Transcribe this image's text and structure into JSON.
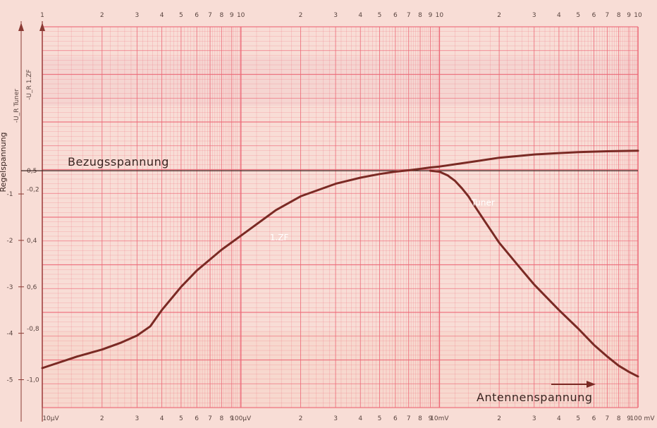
{
  "chart_data": {
    "type": "line",
    "x_scale": "log",
    "x_range": [
      1,
      1000
    ],
    "x_top_tick_labels": [
      "1",
      "2",
      "3",
      "4",
      "5",
      "6",
      "7",
      "8",
      "9",
      "10",
      "2",
      "3",
      "4",
      "5",
      "6",
      "7",
      "8",
      "9",
      "10",
      "2",
      "3",
      "4",
      "5",
      "6",
      "7",
      "8",
      "9",
      "10"
    ],
    "x_bottom_tick_labels": [
      "10µV",
      "2",
      "3",
      "4",
      "5",
      "6",
      "7",
      "8",
      "9",
      "100µV",
      "2",
      "3",
      "4",
      "5",
      "6",
      "7",
      "8",
      "9",
      "10mV",
      "2",
      "3",
      "4",
      "5",
      "6",
      "7",
      "8",
      "9",
      "100 mV"
    ],
    "y_left_ticks": [
      {
        "label": "-1",
        "v": -1
      },
      {
        "label": "-2",
        "v": -2
      },
      {
        "label": "-3",
        "v": -3
      },
      {
        "label": "-4",
        "v": -4
      },
      {
        "label": "-5",
        "v": -5
      }
    ],
    "y_inner_ticks": [
      {
        "label": "0,5",
        "v": -0.5
      },
      {
        "label": "-0,2",
        "v": -0.9
      },
      {
        "label": "0,4",
        "v": -2.0
      },
      {
        "label": "0,6",
        "v": -3.0
      },
      {
        "label": "-0,8",
        "v": -3.9
      },
      {
        "label": "-1,0",
        "v": -5.0
      }
    ],
    "y_range": [
      -5.6,
      2.6
    ],
    "ylabel": "Regelspannung",
    "ylabel_units": [
      "-U_R Tuner",
      "-U_R 1.ZF"
    ],
    "xlabel": "Antennenspannung",
    "reference_line": {
      "label": "Bezugsspannung",
      "y": -0.5
    },
    "series": [
      {
        "name": "1.ZF",
        "color": "#7a2a24",
        "x": [
          1,
          1.5,
          2,
          2.5,
          3,
          3.5,
          4,
          5,
          6,
          8,
          10,
          15,
          20,
          30,
          40,
          50,
          60,
          70,
          80,
          90,
          100,
          150,
          200,
          300,
          400,
          500,
          700,
          1000
        ],
        "y": [
          -4.75,
          -4.5,
          -4.35,
          -4.2,
          -4.05,
          -3.85,
          -3.5,
          -3.0,
          -2.65,
          -2.2,
          -1.9,
          -1.35,
          -1.05,
          -0.78,
          -0.65,
          -0.57,
          -0.52,
          -0.49,
          -0.46,
          -0.43,
          -0.41,
          -0.3,
          -0.22,
          -0.15,
          -0.12,
          -0.1,
          -0.08,
          -0.07
        ]
      },
      {
        "name": "Tuner",
        "color": "#7a2a24",
        "x": [
          90,
          100,
          110,
          120,
          130,
          140,
          150,
          170,
          200,
          250,
          300,
          400,
          500,
          600,
          700,
          800,
          900,
          1000
        ],
        "y": [
          -0.5,
          -0.52,
          -0.6,
          -0.72,
          -0.88,
          -1.05,
          -1.25,
          -1.6,
          -2.05,
          -2.55,
          -2.95,
          -3.5,
          -3.9,
          -4.25,
          -4.5,
          -4.7,
          -4.83,
          -4.93
        ]
      }
    ],
    "curve_labels": [
      {
        "text": "1.ZF",
        "x": 14,
        "y": -2.0
      },
      {
        "text": "Tuner",
        "x": 145,
        "y": -1.25
      }
    ],
    "colors": {
      "paper": "#f7d9d3",
      "grid": "#ec6a78",
      "curve": "#7a2a24"
    }
  }
}
